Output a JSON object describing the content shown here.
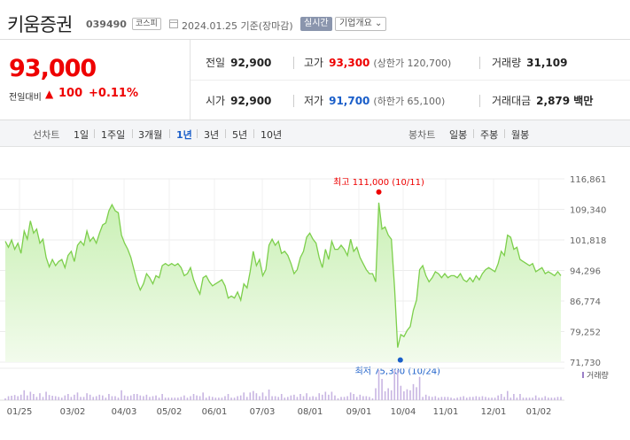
{
  "header": {
    "stock_name": "키움증권",
    "stock_code": "039490",
    "market": "코스피",
    "date_text": "2024.01.25 기준(장마감)",
    "realtime_label": "실시간",
    "company_label": "기업개요 ⌄"
  },
  "price": {
    "current": "93,000",
    "change_label": "전일대비",
    "change_arrow": "▲",
    "change_value": "100",
    "change_pct": "+0.11%"
  },
  "stats": {
    "prev_close_label": "전일",
    "prev_close": "92,900",
    "high_label": "고가",
    "high": "93,300",
    "upper_limit": "(상한가 120,700)",
    "volume_label": "거래량",
    "volume": "31,109",
    "open_label": "시가",
    "open": "92,900",
    "low_label": "저가",
    "low": "91,700",
    "lower_limit": "(하한가 65,100)",
    "amount_label": "거래대금",
    "amount": "2,879 백만"
  },
  "period_bar": {
    "line_label": "선차트",
    "periods": [
      "1일",
      "1주일",
      "3개월",
      "1년",
      "3년",
      "5년",
      "10년"
    ],
    "active": "1년",
    "candle_label": "봉차트",
    "candles": [
      "일봉",
      "주봉",
      "월봉"
    ]
  },
  "chart_data": {
    "type": "area",
    "y_ticks": [
      "116,861",
      "109,340",
      "101,818",
      "94,296",
      "86,774",
      "79,252",
      "71,730"
    ],
    "ylim": [
      71730,
      116861
    ],
    "x_ticks": [
      "01/25",
      "03/02",
      "04/03",
      "05/02",
      "06/01",
      "07/03",
      "08/01",
      "09/01",
      "10/04",
      "11/01",
      "12/01",
      "01/02"
    ],
    "high_label": "최고 111,000 (10/11)",
    "low_label": "최저 75,300 (10/24)",
    "volume_legend": "거래량",
    "values": [
      101500,
      100000,
      101800,
      99500,
      101000,
      98500,
      104000,
      102000,
      106500,
      103500,
      104500,
      101000,
      102000,
      97500,
      95200,
      97000,
      95500,
      96500,
      97000,
      95000,
      98000,
      99000,
      96500,
      100500,
      101500,
      100500,
      104000,
      101500,
      102500,
      101000,
      103500,
      105500,
      106000,
      109000,
      110500,
      109000,
      108500,
      103000,
      101000,
      99500,
      97500,
      94500,
      91500,
      89500,
      91000,
      93500,
      92500,
      91000,
      93000,
      92500,
      95500,
      96000,
      95500,
      96000,
      95500,
      96000,
      95000,
      93000,
      93500,
      95000,
      92000,
      90000,
      88500,
      92500,
      93000,
      91500,
      90500,
      91000,
      91500,
      92000,
      90500,
      87500,
      88000,
      87500,
      89000,
      87000,
      91000,
      90000,
      94000,
      99000,
      95500,
      97000,
      93000,
      94500,
      100500,
      102000,
      100500,
      101500,
      98500,
      99000,
      98000,
      96000,
      93500,
      94500,
      97500,
      99000,
      102500,
      103500,
      102000,
      101000,
      97500,
      95000,
      99500,
      97000,
      101500,
      99500,
      99500,
      100500,
      99500,
      98000,
      102000,
      99000,
      100000,
      97500,
      96000,
      94500,
      93500,
      93500,
      91500,
      111000,
      104500,
      105000,
      103000,
      102000,
      90000,
      75300,
      78500,
      78000,
      79500,
      80500,
      84500,
      87000,
      94500,
      95500,
      93000,
      91500,
      92500,
      94000,
      93500,
      92500,
      93500,
      92500,
      93000,
      93000,
      92500,
      93500,
      92000,
      91500,
      92500,
      91500,
      93000,
      92000,
      93500,
      94500,
      95000,
      94500,
      94000,
      96000,
      99000,
      98000,
      103000,
      102500,
      99500,
      100000,
      97000,
      96500,
      96000,
      95500,
      96000,
      94000,
      94500,
      95000,
      93500,
      94000,
      93500,
      93000,
      94000,
      93000
    ]
  }
}
